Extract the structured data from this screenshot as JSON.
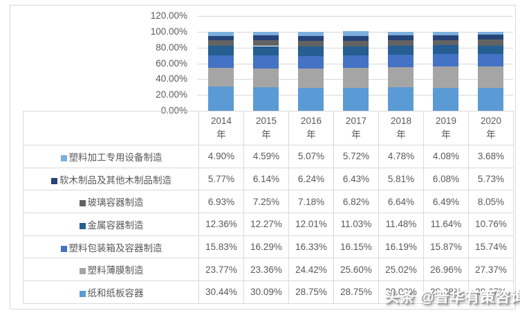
{
  "watermark": {
    "text": "头条 @普华有策咨询"
  },
  "table": {
    "years": [
      "2014",
      "2015",
      "2016",
      "2017",
      "2018",
      "2019",
      "2020"
    ],
    "year_suffix": "年"
  },
  "chart_data": {
    "type": "bar",
    "stacked": true,
    "title": "",
    "categories": [
      "2014年",
      "2015年",
      "2016年",
      "2017年",
      "2018年",
      "2019年",
      "2020年"
    ],
    "y_axis": {
      "min": 0,
      "max": 120,
      "tick_step": 20,
      "tick_labels": [
        "0.00%",
        "20.00%",
        "40.00%",
        "60.00%",
        "80.00%",
        "100.00%",
        "120.00%"
      ]
    },
    "grid": true,
    "legend_position": "data-table-left-column",
    "stack_order": "last listed series is at the bottom of each bar",
    "note": "2018-2020 values of 纸和纸板容器 are partially covered by the watermark",
    "series": [
      {
        "name": "塑料加工专用设备制造",
        "color": "#7CAFDD",
        "values": [
          4.9,
          4.59,
          5.07,
          5.72,
          4.78,
          4.08,
          3.68
        ],
        "display": [
          "4.90%",
          "4.59%",
          "5.07%",
          "5.72%",
          "4.78%",
          "4.08%",
          "3.68%"
        ]
      },
      {
        "name": "软木制品及其他木制品制造",
        "color": "#264478",
        "values": [
          5.77,
          6.14,
          6.24,
          6.43,
          5.81,
          6.08,
          5.73
        ],
        "display": [
          "5.77%",
          "6.14%",
          "6.24%",
          "6.43%",
          "5.81%",
          "6.08%",
          "5.73%"
        ]
      },
      {
        "name": "玻璃容器制造",
        "color": "#636363",
        "values": [
          6.93,
          7.25,
          7.18,
          6.82,
          6.64,
          6.49,
          8.05
        ],
        "display": [
          "6.93%",
          "7.25%",
          "7.18%",
          "6.82%",
          "6.64%",
          "6.49%",
          "8.05%"
        ]
      },
      {
        "name": "金属容器制造",
        "color": "#255E91",
        "values": [
          12.36,
          12.27,
          12.01,
          11.03,
          11.48,
          11.64,
          10.76
        ],
        "display": [
          "12.36%",
          "12.27%",
          "12.01%",
          "11.03%",
          "11.48%",
          "11.64%",
          "10.76%"
        ]
      },
      {
        "name": "塑料包装箱及容器制造",
        "color": "#4472C4",
        "values": [
          15.83,
          16.29,
          16.33,
          16.15,
          16.19,
          15.87,
          15.74
        ],
        "display": [
          "15.83%",
          "16.29%",
          "16.33%",
          "16.15%",
          "16.19%",
          "15.87%",
          "15.74%"
        ]
      },
      {
        "name": "塑料薄膜制造",
        "color": "#A5A5A5",
        "values": [
          23.77,
          23.36,
          24.42,
          25.6,
          25.02,
          26.96,
          27.37
        ],
        "display": [
          "23.77%",
          "23.36%",
          "24.42%",
          "25.60%",
          "25.02%",
          "26.96%",
          "27.37%"
        ]
      },
      {
        "name": "纸和纸板容器",
        "color": "#5B9BD5",
        "values": [
          30.44,
          30.09,
          28.75,
          28.75,
          30.08,
          28.88,
          28.67
        ],
        "display": [
          "30.44%",
          "30.09%",
          "28.75%",
          "28.75%",
          "30.08%",
          "28.88%",
          "28.67%"
        ]
      }
    ]
  }
}
